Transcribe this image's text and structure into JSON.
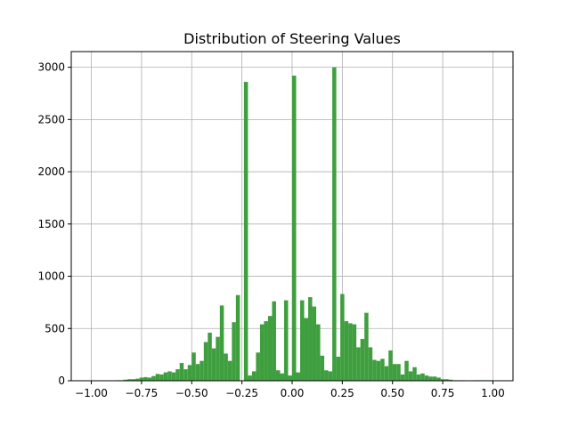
{
  "chart_data": {
    "type": "bar",
    "title": "Distribution of Steering Values",
    "xlabel": "",
    "ylabel": "",
    "xlim": [
      -1.1,
      1.1
    ],
    "ylim": [
      0,
      3150
    ],
    "xticks": [
      -1.0,
      -0.75,
      -0.5,
      -0.25,
      0.0,
      0.25,
      0.5,
      0.75,
      1.0
    ],
    "xtick_labels": [
      "−1.00",
      "−0.75",
      "−0.50",
      "−0.25",
      "0.00",
      "0.25",
      "0.50",
      "0.75",
      "1.00"
    ],
    "yticks": [
      0,
      500,
      1000,
      1500,
      2000,
      2500,
      3000
    ],
    "ytick_labels": [
      "0",
      "500",
      "1000",
      "1500",
      "2000",
      "2500",
      "3000"
    ],
    "grid": true,
    "bar_color": "#3f9f3f",
    "bin_range": [
      -1.0,
      1.0
    ],
    "bin_count": 100,
    "values": [
      0,
      0,
      0,
      0,
      0,
      0,
      5,
      5,
      10,
      15,
      15,
      20,
      30,
      35,
      30,
      45,
      65,
      60,
      80,
      90,
      80,
      110,
      170,
      110,
      150,
      270,
      160,
      190,
      370,
      460,
      310,
      420,
      720,
      260,
      190,
      560,
      820,
      0,
      2860,
      50,
      90,
      270,
      540,
      570,
      620,
      760,
      100,
      70,
      770,
      50,
      2920,
      80,
      770,
      600,
      800,
      710,
      540,
      240,
      100,
      90,
      3000,
      230,
      830,
      570,
      550,
      540,
      320,
      400,
      650,
      320,
      200,
      190,
      210,
      140,
      290,
      160,
      160,
      60,
      190,
      90,
      130,
      60,
      70,
      50,
      40,
      40,
      30,
      15,
      15,
      10,
      5,
      5,
      5,
      0,
      0,
      5,
      5,
      5,
      5,
      5
    ]
  }
}
